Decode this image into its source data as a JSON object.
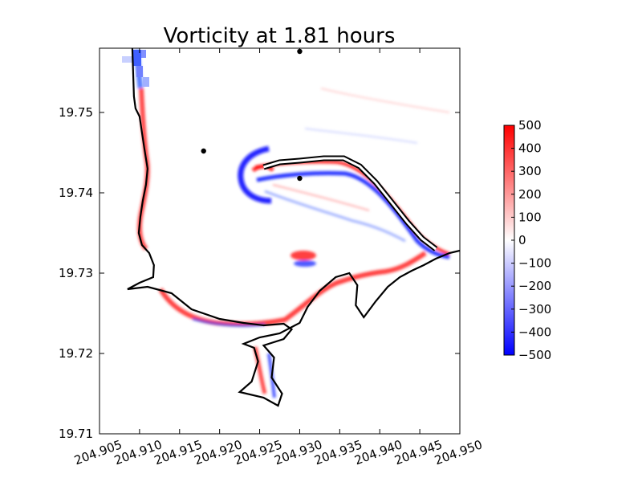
{
  "chart_data": {
    "type": "heatmap",
    "title": "Vorticity at 1.81 hours",
    "xlabel": "",
    "ylabel": "",
    "xlim": [
      204.905,
      204.95
    ],
    "ylim": [
      19.71,
      19.758
    ],
    "x_ticks": [
      "204.905",
      "204.910",
      "204.915",
      "204.920",
      "204.925",
      "204.930",
      "204.935",
      "204.940",
      "204.945",
      "204.950"
    ],
    "y_ticks": [
      "19.71",
      "19.72",
      "19.73",
      "19.74",
      "19.75"
    ],
    "x_tick_values": [
      204.905,
      204.91,
      204.915,
      204.92,
      204.925,
      204.93,
      204.935,
      204.94,
      204.945,
      204.95
    ],
    "y_tick_values": [
      19.71,
      19.72,
      19.73,
      19.74,
      19.75
    ],
    "colorbar": {
      "vmin": -500,
      "vmax": 500,
      "colormap": "bwr",
      "ticks": [
        "500",
        "400",
        "300",
        "200",
        "100",
        "0",
        "−100",
        "−200",
        "−300",
        "−400",
        "−500"
      ],
      "tick_values": [
        500,
        400,
        300,
        200,
        100,
        0,
        -100,
        -200,
        -300,
        -400,
        -500
      ]
    },
    "gauges": [
      {
        "x": 204.93,
        "y": 19.7576
      },
      {
        "x": 204.918,
        "y": 19.7452
      },
      {
        "x": 204.93,
        "y": 19.7418
      }
    ],
    "coastline": [
      [
        204.9091,
        19.758
      ],
      [
        204.9092,
        19.755
      ],
      [
        204.9093,
        19.752
      ],
      [
        204.9095,
        19.7505
      ],
      [
        204.91,
        19.7495
      ],
      [
        204.9103,
        19.7475
      ],
      [
        204.9106,
        19.7455
      ],
      [
        204.911,
        19.743
      ],
      [
        204.9108,
        19.741
      ],
      [
        204.9104,
        19.739
      ],
      [
        204.9101,
        19.737
      ],
      [
        204.9099,
        19.735
      ],
      [
        204.9103,
        19.7335
      ],
      [
        204.9112,
        19.7325
      ],
      [
        204.9118,
        19.731
      ],
      [
        204.9117,
        19.7295
      ],
      [
        204.91,
        19.7288
      ],
      [
        204.9085,
        19.728
      ],
      [
        204.911,
        19.7283
      ],
      [
        204.914,
        19.7275
      ],
      [
        204.9165,
        19.7255
      ],
      [
        204.92,
        19.7243
      ],
      [
        204.923,
        19.7238
      ],
      [
        204.9255,
        19.7235
      ],
      [
        204.928,
        19.7237
      ],
      [
        204.929,
        19.723
      ],
      [
        204.928,
        19.7218
      ],
      [
        204.9255,
        19.721
      ],
      [
        204.9268,
        19.7195
      ],
      [
        204.9265,
        19.717
      ],
      [
        204.9278,
        19.715
      ],
      [
        204.9273,
        19.7135
      ],
      [
        204.9255,
        19.7145
      ],
      [
        204.9225,
        19.7152
      ],
      [
        204.924,
        19.7165
      ],
      [
        204.9248,
        19.719
      ],
      [
        204.9243,
        19.7207
      ],
      [
        204.923,
        19.7212
      ],
      [
        204.925,
        19.722
      ],
      [
        204.9275,
        19.7225
      ],
      [
        204.93,
        19.7238
      ],
      [
        204.931,
        19.7258
      ],
      [
        204.9325,
        19.7278
      ],
      [
        204.9345,
        19.7295
      ],
      [
        204.9362,
        19.73
      ],
      [
        204.9372,
        19.7285
      ],
      [
        204.937,
        19.726
      ],
      [
        204.938,
        19.7245
      ],
      [
        204.9395,
        19.7265
      ],
      [
        204.941,
        19.7283
      ],
      [
        204.9425,
        19.7295
      ],
      [
        204.944,
        19.7303
      ],
      [
        204.9455,
        19.731
      ],
      [
        204.947,
        19.7318
      ],
      [
        204.9487,
        19.7325
      ],
      [
        204.95,
        19.7328
      ]
    ],
    "breakwater": [
      [
        204.9255,
        19.7432
      ],
      [
        204.9275,
        19.7438
      ],
      [
        204.93,
        19.744
      ],
      [
        204.933,
        19.7443
      ],
      [
        204.9355,
        19.7443
      ],
      [
        204.9375,
        19.7433
      ],
      [
        204.9395,
        19.7413
      ],
      [
        204.9415,
        19.7388
      ],
      [
        204.9435,
        19.7363
      ],
      [
        204.9453,
        19.7343
      ],
      [
        204.947,
        19.733
      ]
    ]
  }
}
